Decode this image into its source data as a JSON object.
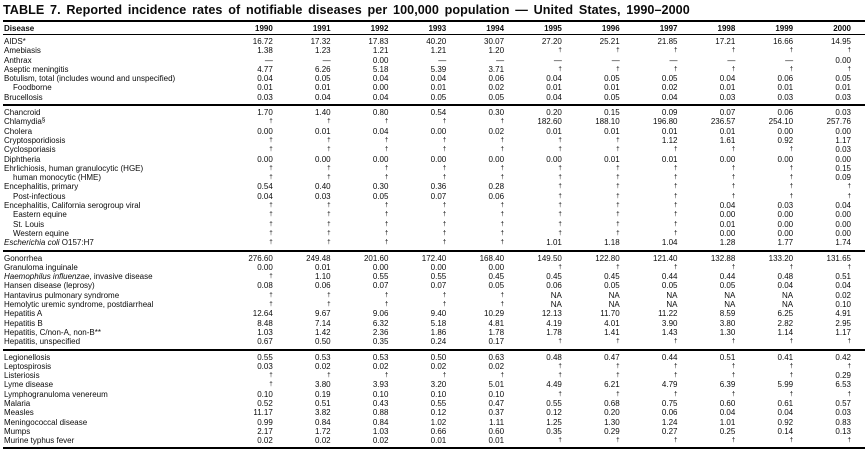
{
  "document": {
    "title": "TABLE 7. Reported incidence rates of notifiable diseases per 100,000 population — United States, 1990–2000"
  },
  "table": {
    "columns": [
      "Disease",
      "1990",
      "1991",
      "1992",
      "1993",
      "1994",
      "1995",
      "1996",
      "1997",
      "1998",
      "1999",
      "2000"
    ],
    "symbols": {
      "footnote_dagger": "†",
      "no_data_dash": "—",
      "not_available": "NA"
    },
    "groups": [
      {
        "rows": [
          {
            "label": "AIDS*",
            "values": [
              "16.72",
              "17.32",
              "17.83",
              "40.20",
              "30.07",
              "27.20",
              "25.21",
              "21.85",
              "17.21",
              "16.66",
              "14.95"
            ]
          },
          {
            "label": "Amebiasis",
            "values": [
              "1.38",
              "1.23",
              "1.21",
              "1.21",
              "1.20",
              "†",
              "†",
              "†",
              "†",
              "†",
              "†"
            ]
          },
          {
            "label": "Anthrax",
            "values": [
              "—",
              "—",
              "0.00",
              "—",
              "—",
              "—",
              "—",
              "—",
              "—",
              "—",
              "0.00"
            ]
          },
          {
            "label": "Aseptic meningitis",
            "values": [
              "4.77",
              "6.26",
              "5.18",
              "5.39",
              "3.71",
              "†",
              "†",
              "†",
              "†",
              "†",
              "†"
            ]
          },
          {
            "label": "Botulism, total (includes wound and unspecified)",
            "values": [
              "0.04",
              "0.05",
              "0.04",
              "0.04",
              "0.06",
              "0.04",
              "0.05",
              "0.05",
              "0.04",
              "0.06",
              "0.05"
            ]
          },
          {
            "label": "Foodborne",
            "indent": 1,
            "values": [
              "0.01",
              "0.01",
              "0.00",
              "0.01",
              "0.02",
              "0.01",
              "0.01",
              "0.02",
              "0.01",
              "0.01",
              "0.01"
            ]
          },
          {
            "label": "Brucellosis",
            "values": [
              "0.03",
              "0.04",
              "0.04",
              "0.05",
              "0.05",
              "0.04",
              "0.05",
              "0.04",
              "0.03",
              "0.03",
              "0.03"
            ]
          }
        ]
      },
      {
        "rows": [
          {
            "label": "Chancroid",
            "values": [
              "1.70",
              "1.40",
              "0.80",
              "0.54",
              "0.30",
              "0.20",
              "0.15",
              "0.09",
              "0.07",
              "0.06",
              "0.03"
            ]
          },
          {
            "label": "Chlamydia",
            "sup": "§",
            "values": [
              "†",
              "†",
              "†",
              "†",
              "†",
              "182.60",
              "188.10",
              "196.80",
              "236.57",
              "254.10",
              "257.76"
            ]
          },
          {
            "label": "Cholera",
            "values": [
              "0.00",
              "0.01",
              "0.04",
              "0.00",
              "0.02",
              "0.01",
              "0.01",
              "0.01",
              "0.01",
              "0.00",
              "0.00"
            ]
          },
          {
            "label": "Cryptosporidiosis",
            "values": [
              "†",
              "†",
              "†",
              "†",
              "†",
              "†",
              "†",
              "1.12",
              "1.61",
              "0.92",
              "1.17"
            ]
          },
          {
            "label": "Cyclosporiasis",
            "values": [
              "†",
              "†",
              "†",
              "†",
              "†",
              "†",
              "†",
              "†",
              "†",
              "†",
              "0.03"
            ]
          },
          {
            "label": "Diphtheria",
            "values": [
              "0.00",
              "0.00",
              "0.00",
              "0.00",
              "0.00",
              "0.00",
              "0.01",
              "0.01",
              "0.00",
              "0.00",
              "0.00"
            ]
          },
          {
            "label": "Ehrlichiosis, human granulocytic (HGE)",
            "values": [
              "†",
              "†",
              "†",
              "†",
              "†",
              "†",
              "†",
              "†",
              "†",
              "†",
              "0.15"
            ]
          },
          {
            "label": "human monocytic (HME)",
            "indent": 1,
            "values": [
              "†",
              "†",
              "†",
              "†",
              "†",
              "†",
              "†",
              "†",
              "†",
              "†",
              "0.09"
            ]
          },
          {
            "label": "Encephalitis, primary",
            "values": [
              "0.54",
              "0.40",
              "0.30",
              "0.36",
              "0.28",
              "†",
              "†",
              "†",
              "†",
              "†",
              "†"
            ]
          },
          {
            "label": "Post-infectious",
            "indent": 1,
            "values": [
              "0.04",
              "0.03",
              "0.05",
              "0.07",
              "0.06",
              "†",
              "†",
              "†",
              "†",
              "†",
              "†"
            ]
          },
          {
            "label": "Encephalitis, California serogroup viral",
            "values": [
              "†",
              "†",
              "†",
              "†",
              "†",
              "†",
              "†",
              "†",
              "0.04",
              "0.03",
              "0.04"
            ]
          },
          {
            "label": "Eastern equine",
            "indent": 1,
            "values": [
              "†",
              "†",
              "†",
              "†",
              "†",
              "†",
              "†",
              "†",
              "0.00",
              "0.00",
              "0.00"
            ]
          },
          {
            "label": "St. Louis",
            "indent": 1,
            "values": [
              "†",
              "†",
              "†",
              "†",
              "†",
              "†",
              "†",
              "†",
              "0.01",
              "0.00",
              "0.00"
            ]
          },
          {
            "label": "Western equine",
            "indent": 1,
            "values": [
              "†",
              "†",
              "†",
              "†",
              "†",
              "†",
              "†",
              "†",
              "0.00",
              "0.00",
              "0.00"
            ]
          },
          {
            "italic": "Escherichia coli",
            "label": " O157:H7",
            "values": [
              "†",
              "†",
              "†",
              "†",
              "†",
              "1.01",
              "1.18",
              "1.04",
              "1.28",
              "1.77",
              "1.74"
            ]
          }
        ]
      },
      {
        "rows": [
          {
            "label": "Gonorrhea",
            "values": [
              "276.60",
              "249.48",
              "201.60",
              "172.40",
              "168.40",
              "149.50",
              "122.80",
              "121.40",
              "132.88",
              "133.20",
              "131.65"
            ]
          },
          {
            "label": "Granuloma inguinale",
            "values": [
              "0.00",
              "0.01",
              "0.00",
              "0.00",
              "0.00",
              "†",
              "†",
              "†",
              "†",
              "†",
              "†"
            ]
          },
          {
            "italic": "Haemophilus influenzae",
            "label": ", invasive disease",
            "values": [
              "†",
              "1.10",
              "0.55",
              "0.55",
              "0.45",
              "0.45",
              "0.45",
              "0.44",
              "0.44",
              "0.48",
              "0.51"
            ]
          },
          {
            "label": "Hansen disease (leprosy)",
            "values": [
              "0.08",
              "0.06",
              "0.07",
              "0.07",
              "0.05",
              "0.06",
              "0.05",
              "0.05",
              "0.05",
              "0.04",
              "0.04"
            ]
          },
          {
            "label": "Hantavirus pulmonary syndrome",
            "values": [
              "†",
              "†",
              "†",
              "†",
              "†",
              "NA",
              "NA",
              "NA",
              "NA",
              "NA",
              "0.02"
            ]
          },
          {
            "label": "Hemolytic uremic syndrome, postdiarrheal",
            "values": [
              "†",
              "†",
              "†",
              "†",
              "†",
              "NA",
              "NA",
              "NA",
              "NA",
              "NA",
              "0.10"
            ]
          },
          {
            "label": "Hepatitis A",
            "values": [
              "12.64",
              "9.67",
              "9.06",
              "9.40",
              "10.29",
              "12.13",
              "11.70",
              "11.22",
              "8.59",
              "6.25",
              "4.91"
            ]
          },
          {
            "label": "Hepatitis B",
            "values": [
              "8.48",
              "7.14",
              "6.32",
              "5.18",
              "4.81",
              "4.19",
              "4.01",
              "3.90",
              "3.80",
              "2.82",
              "2.95"
            ]
          },
          {
            "label": "Hepatitis, C/non-A, non-B**",
            "values": [
              "1.03",
              "1.42",
              "2.36",
              "1.86",
              "1.78",
              "1.78",
              "1.41",
              "1.43",
              "1.30",
              "1.14",
              "1.17"
            ]
          },
          {
            "label": "Hepatitis, unspecified",
            "values": [
              "0.67",
              "0.50",
              "0.35",
              "0.24",
              "0.17",
              "†",
              "†",
              "†",
              "†",
              "†",
              "†"
            ]
          }
        ]
      },
      {
        "rows": [
          {
            "label": "Legionellosis",
            "values": [
              "0.55",
              "0.53",
              "0.53",
              "0.50",
              "0.63",
              "0.48",
              "0.47",
              "0.44",
              "0.51",
              "0.41",
              "0.42"
            ]
          },
          {
            "label": "Leptospirosis",
            "values": [
              "0.03",
              "0.02",
              "0.02",
              "0.02",
              "0.02",
              "†",
              "†",
              "†",
              "†",
              "†",
              "†"
            ]
          },
          {
            "label": "Listeriosis",
            "values": [
              "†",
              "†",
              "†",
              "†",
              "†",
              "†",
              "†",
              "†",
              "†",
              "†",
              "0.29"
            ]
          },
          {
            "label": "Lyme disease",
            "values": [
              "†",
              "3.80",
              "3.93",
              "3.20",
              "5.01",
              "4.49",
              "6.21",
              "4.79",
              "6.39",
              "5.99",
              "6.53"
            ]
          },
          {
            "label": "Lymphogranuloma venereum",
            "values": [
              "0.10",
              "0.19",
              "0.10",
              "0.10",
              "0.10",
              "†",
              "†",
              "†",
              "†",
              "†",
              "†"
            ]
          },
          {
            "label": "Malaria",
            "values": [
              "0.52",
              "0.51",
              "0.43",
              "0.55",
              "0.47",
              "0.55",
              "0.68",
              "0.75",
              "0.60",
              "0.61",
              "0.57"
            ]
          },
          {
            "label": "Measles",
            "values": [
              "11.17",
              "3.82",
              "0.88",
              "0.12",
              "0.37",
              "0.12",
              "0.20",
              "0.06",
              "0.04",
              "0.04",
              "0.03"
            ]
          },
          {
            "label": "Meningococcal disease",
            "values": [
              "0.99",
              "0.84",
              "0.84",
              "1.02",
              "1.11",
              "1.25",
              "1.30",
              "1.24",
              "1.01",
              "0.92",
              "0.83"
            ]
          },
          {
            "label": "Mumps",
            "values": [
              "2.17",
              "1.72",
              "1.03",
              "0.66",
              "0.60",
              "0.35",
              "0.29",
              "0.27",
              "0.25",
              "0.14",
              "0.13"
            ]
          },
          {
            "label": "Murine typhus fever",
            "values": [
              "0.02",
              "0.02",
              "0.02",
              "0.01",
              "0.01",
              "†",
              "†",
              "†",
              "†",
              "†",
              "†"
            ]
          }
        ]
      }
    ]
  }
}
